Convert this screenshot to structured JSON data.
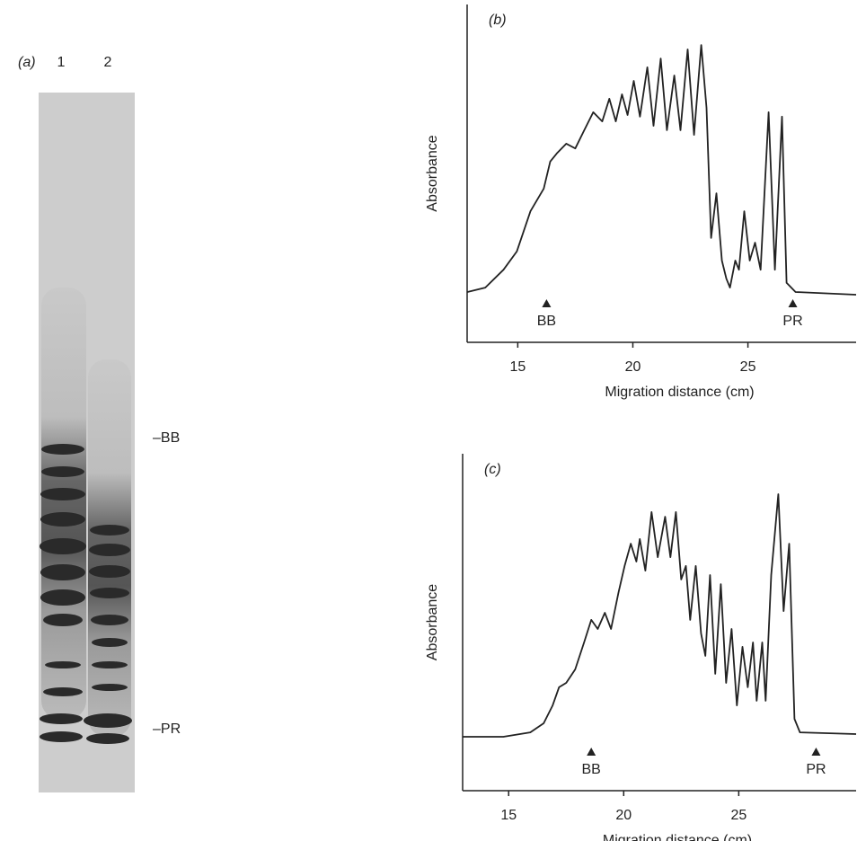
{
  "gel": {
    "label": "(a)",
    "lanes": [
      "1",
      "2"
    ],
    "markers": [
      "–BB",
      "–PR"
    ]
  },
  "chart_data": [
    {
      "type": "line",
      "panel": "(b)",
      "xlabel": "Migration distance (cm)",
      "ylabel": "Absorbance",
      "color": "#222222",
      "xlim": [
        12.8,
        29.7
      ],
      "ylim": [
        0,
        100
      ],
      "xticks": [
        15,
        20,
        25
      ],
      "x": [
        12.81,
        13.59,
        14.38,
        14.96,
        15.55,
        16.13,
        16.41,
        16.72,
        17.11,
        17.5,
        17.89,
        18.28,
        18.67,
        18.98,
        19.26,
        19.53,
        19.77,
        20.04,
        20.31,
        20.63,
        20.9,
        21.21,
        21.48,
        21.8,
        22.07,
        22.38,
        22.66,
        22.97,
        23.2,
        23.4,
        23.63,
        23.87,
        24.06,
        24.22,
        24.45,
        24.61,
        24.84,
        25.08,
        25.31,
        25.55,
        25.9,
        26.17,
        26.48,
        26.68,
        27.07,
        29.7
      ],
      "values": [
        14.9,
        16.2,
        21.5,
        26.9,
        38.8,
        45.5,
        53.5,
        56.1,
        58.8,
        57.4,
        62.8,
        68.1,
        65.4,
        72.1,
        65.4,
        73.4,
        67.3,
        77.4,
        66.8,
        81.4,
        64.1,
        84.0,
        62.8,
        79.0,
        62.8,
        86.7,
        61.4,
        88.0,
        69.4,
        30.9,
        44.1,
        24.2,
        18.9,
        16.2,
        24.2,
        21.5,
        38.8,
        24.2,
        29.5,
        21.5,
        68.1,
        21.5,
        66.8,
        17.6,
        14.9,
        14.1
      ],
      "annotations": [
        {
          "text": "BB",
          "x": 16.25
        },
        {
          "text": "PR",
          "x": 26.95
        }
      ]
    },
    {
      "type": "line",
      "panel": "(c)",
      "xlabel": "Migration distance (cm)",
      "ylabel": "Absorbance",
      "color": "#222222",
      "xlim": [
        13.0,
        30.1
      ],
      "ylim": [
        0,
        100
      ],
      "xticks": [
        15,
        20,
        25
      ],
      "x": [
        13.01,
        14.77,
        15.94,
        16.52,
        16.91,
        17.19,
        17.5,
        17.89,
        18.28,
        18.59,
        18.87,
        19.18,
        19.45,
        19.77,
        20.04,
        20.31,
        20.55,
        20.7,
        20.94,
        21.21,
        21.48,
        21.8,
        22.03,
        22.27,
        22.5,
        22.7,
        22.89,
        23.13,
        23.36,
        23.55,
        23.75,
        23.98,
        24.22,
        24.45,
        24.69,
        24.92,
        25.16,
        25.39,
        25.62,
        25.78,
        26.02,
        26.17,
        26.41,
        26.72,
        26.95,
        27.19,
        27.42,
        27.66,
        30.1
      ],
      "values": [
        16,
        16,
        17.3,
        20,
        25.3,
        30.7,
        32,
        36,
        44,
        50.7,
        48,
        52.8,
        48,
        58.7,
        66.7,
        73.3,
        68,
        74.7,
        65.3,
        82.7,
        69.3,
        81.3,
        69.3,
        82.7,
        62.7,
        66.7,
        50.7,
        66.7,
        46.7,
        40,
        64,
        34.7,
        61.3,
        32,
        48,
        25.3,
        42.7,
        30.7,
        44,
        26.7,
        44,
        26.7,
        64,
        88,
        53.3,
        73.3,
        21.3,
        17.3,
        16.8
      ],
      "annotations": [
        {
          "text": "BB",
          "x": 18.59
        },
        {
          "text": "PR",
          "x": 28.36
        }
      ]
    }
  ]
}
